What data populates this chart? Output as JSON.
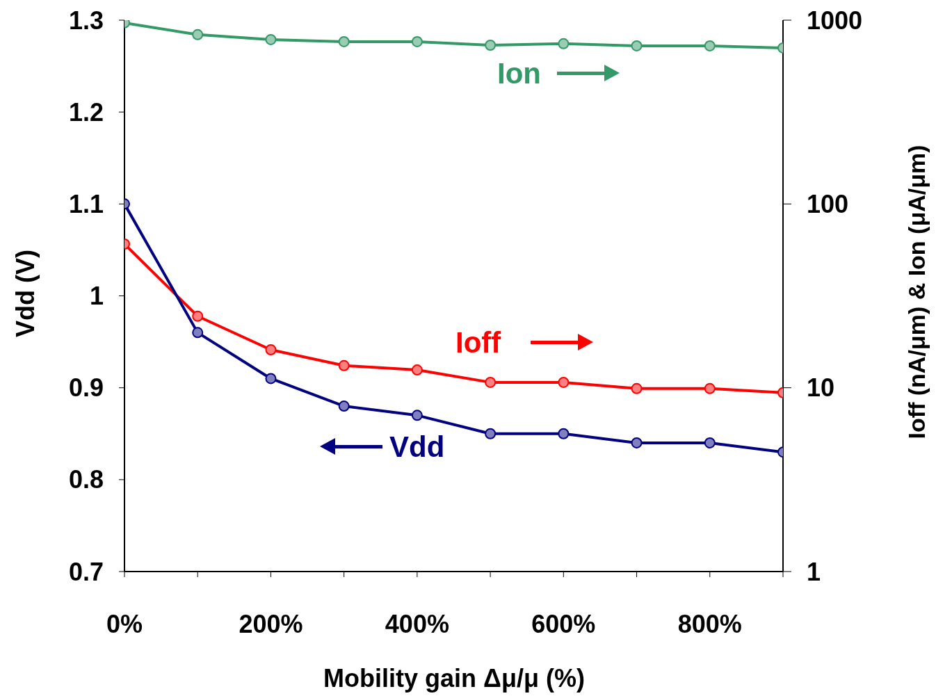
{
  "chart_data": {
    "type": "line",
    "xlabel": "Mobility gain Δμ/μ (%)",
    "ylabel": "Vdd (V)",
    "y2label": "Ioff (nA/μm) & Ion (μA/μm)",
    "x": [
      0,
      100,
      200,
      300,
      400,
      500,
      600,
      700,
      800,
      900
    ],
    "xlim": [
      0,
      900
    ],
    "xticks": [
      {
        "value": 0,
        "label": "0%"
      },
      {
        "value": 100,
        "label": null
      },
      {
        "value": 200,
        "label": "200%"
      },
      {
        "value": 300,
        "label": null
      },
      {
        "value": 400,
        "label": "400%"
      },
      {
        "value": 500,
        "label": null
      },
      {
        "value": 600,
        "label": "600%"
      },
      {
        "value": 700,
        "label": null
      },
      {
        "value": 800,
        "label": "800%"
      },
      {
        "value": 900,
        "label": null
      }
    ],
    "ylim": [
      0.7,
      1.3
    ],
    "yticks": [
      0.7,
      0.8,
      0.9,
      1,
      1.1,
      1.2,
      1.3
    ],
    "y2lim": [
      1,
      1000
    ],
    "y2ticks": [
      1,
      10,
      100,
      1000
    ],
    "log": "y2",
    "marker": "circle",
    "legend": "center",
    "series": [
      {
        "name": "Ion",
        "color": "#339966",
        "axis": "y2",
        "values": [
          967,
          834,
          784,
          764,
          764,
          731,
          745,
          725,
          725,
          706
        ]
      },
      {
        "name": "Ioff",
        "color": "#ff0000",
        "axis": "y2",
        "values": [
          60.5,
          24.5,
          16.1,
          13.2,
          12.5,
          10.7,
          10.7,
          9.9,
          9.9,
          9.4
        ]
      },
      {
        "name": "Vdd",
        "color": "#000080",
        "axis": "y",
        "values": [
          1.1,
          0.96,
          0.91,
          0.88,
          0.87,
          0.85,
          0.85,
          0.84,
          0.84,
          0.83
        ]
      }
    ]
  }
}
